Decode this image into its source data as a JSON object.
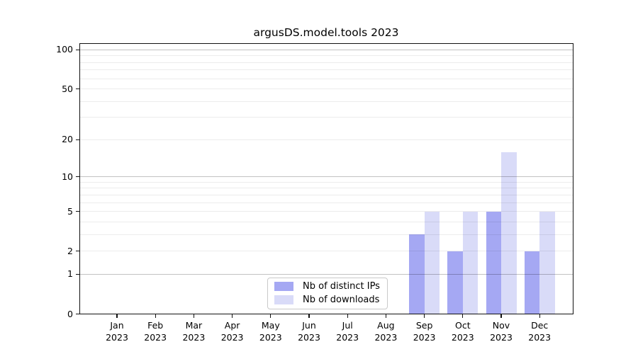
{
  "title": "argusDS.model.tools 2023",
  "chart_data": {
    "type": "bar",
    "title": "argusDS.model.tools 2023",
    "x_categories": [
      "Jan",
      "Feb",
      "Mar",
      "Apr",
      "May",
      "Jun",
      "Jul",
      "Aug",
      "Sep",
      "Oct",
      "Nov",
      "Dec"
    ],
    "x_year_label": "2023",
    "series": [
      {
        "name": "Nb of distinct IPs",
        "color": "#a5a8f3",
        "values": [
          0,
          0,
          0,
          0,
          0,
          0,
          0,
          0,
          3,
          2,
          5,
          2
        ]
      },
      {
        "name": "Nb of downloads",
        "color": "#d9dbf8",
        "values": [
          0,
          0,
          0,
          0,
          0,
          0,
          0,
          0,
          5,
          5,
          16,
          5
        ]
      }
    ],
    "y_axis": {
      "scale": "log1p",
      "tick_values": [
        0,
        1,
        2,
        5,
        10,
        20,
        50,
        100
      ],
      "tick_labels": [
        "0",
        "1",
        "2",
        "5",
        "10",
        "20",
        "50",
        "100"
      ],
      "major_grid_values": [
        1,
        10,
        100
      ],
      "minor_grid_values": [
        2,
        3,
        4,
        5,
        6,
        7,
        8,
        9,
        20,
        30,
        40,
        50,
        60,
        70,
        80,
        90
      ]
    },
    "legend": {
      "position": "lower center",
      "entries": [
        "Nb of distinct IPs",
        "Nb of downloads"
      ]
    },
    "grid": true,
    "colors": {
      "bar_distinct_ips": "#a5a8f3",
      "bar_downloads": "#d9dbf8",
      "frame": "#111111",
      "major_grid": "rgba(0,0,0,0.24)",
      "minor_grid": "rgba(0,0,0,0.075)",
      "text": "#000000"
    }
  }
}
